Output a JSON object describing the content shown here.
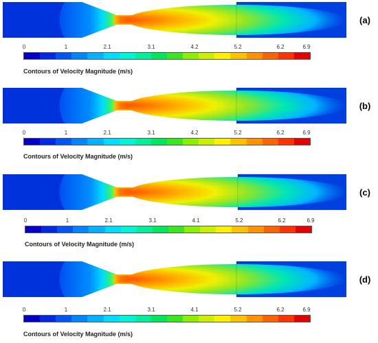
{
  "caption": "Contours of Velocity Magnitude (m/s)",
  "colormap": [
    "#0000c8",
    "#0028e6",
    "#0056f2",
    "#0084ff",
    "#00b2ff",
    "#00dcff",
    "#00f5d8",
    "#00f09a",
    "#00e65a",
    "#3ae61e",
    "#8af000",
    "#caf000",
    "#fff000",
    "#ffc000",
    "#ff9200",
    "#ff6200",
    "#ff3200",
    "#e60000"
  ],
  "panels": [
    {
      "label": "(a)",
      "ticks": [
        "0",
        "1",
        "2.1",
        "3.1",
        "4.2",
        "5.2",
        "6.2",
        "6.9"
      ]
    },
    {
      "label": "(b)",
      "ticks": [
        "0",
        "1",
        "2.1",
        "3.1",
        "4.2",
        "5.2",
        "6.2",
        "6.9"
      ]
    },
    {
      "label": "(c)",
      "ticks": [
        "0",
        "1",
        "2.1",
        "3.1",
        "4.1",
        "5.2",
        "6.2",
        "6.9"
      ]
    },
    {
      "label": "(d)",
      "ticks": [
        "0",
        "1",
        "2.1",
        "3.1",
        "4.1",
        "5.2",
        "6.2",
        "6.9"
      ]
    }
  ]
}
